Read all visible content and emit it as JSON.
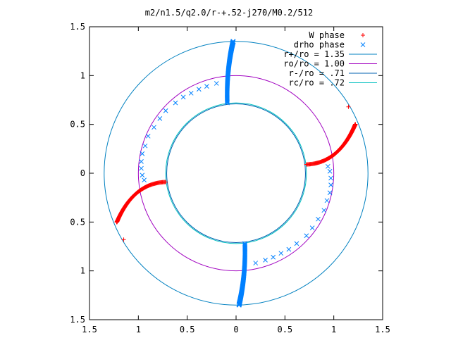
{
  "chart_data": {
    "type": "scatter",
    "title": "m2/n1.5/q2.0/r-+.52-j270/M0.2/512",
    "xlim": [
      -1.5,
      1.5
    ],
    "ylim": [
      -1.5,
      1.5
    ],
    "x_ticks": [
      {
        "value": -1.5,
        "label": "1.5"
      },
      {
        "value": -1.0,
        "label": "1"
      },
      {
        "value": -0.5,
        "label": "0.5"
      },
      {
        "value": 0.0,
        "label": "0"
      },
      {
        "value": 0.5,
        "label": "0.5"
      },
      {
        "value": 1.0,
        "label": "1"
      },
      {
        "value": 1.5,
        "label": "1.5"
      }
    ],
    "y_ticks": [
      {
        "value": 1.5,
        "label": "1.5"
      },
      {
        "value": 1.0,
        "label": "1"
      },
      {
        "value": 0.5,
        "label": "0.5"
      },
      {
        "value": 0.0,
        "label": "0"
      },
      {
        "value": -0.5,
        "label": "0.5"
      },
      {
        "value": -1.0,
        "label": "1"
      },
      {
        "value": -1.5,
        "label": "1.5"
      }
    ],
    "grid": false,
    "legend_position": "top-right",
    "series": [
      {
        "name": "W phase",
        "kind": "points",
        "marker": "plus",
        "color": "#ff0000",
        "arms": [
          {
            "inner": [
              0.72,
              0.09
            ],
            "bend": [
              1.05,
              0.1
            ],
            "outer": [
              1.22,
              0.5
            ],
            "tip": [
              1.15,
              0.68
            ]
          },
          {
            "inner": [
              -0.72,
              -0.09
            ],
            "bend": [
              -1.05,
              -0.1
            ],
            "outer": [
              -1.22,
              -0.5
            ],
            "tip": [
              -1.15,
              -0.68
            ]
          }
        ]
      },
      {
        "name": "drho phase",
        "kind": "points",
        "marker": "cross",
        "color": "#0080ff",
        "arms": [
          {
            "inner": [
              -0.09,
              0.72
            ],
            "bend": [
              -0.1,
              1.05
            ],
            "outer": [
              -0.03,
              1.35
            ],
            "scatter": [
              [
                -0.2,
                0.92
              ],
              [
                -0.3,
                0.89
              ],
              [
                -0.38,
                0.86
              ],
              [
                -0.46,
                0.82
              ],
              [
                -0.54,
                0.78
              ],
              [
                -0.62,
                0.72
              ],
              [
                -0.72,
                0.64
              ],
              [
                -0.78,
                0.56
              ],
              [
                -0.84,
                0.47
              ],
              [
                -0.9,
                0.38
              ],
              [
                -0.93,
                0.28
              ],
              [
                -0.96,
                0.2
              ],
              [
                -0.97,
                0.12
              ],
              [
                -0.97,
                0.05
              ],
              [
                -0.96,
                -0.02
              ],
              [
                -0.94,
                -0.07
              ]
            ]
          },
          {
            "inner": [
              0.09,
              -0.72
            ],
            "bend": [
              0.1,
              -1.05
            ],
            "outer": [
              0.03,
              -1.35
            ],
            "scatter": [
              [
                0.2,
                -0.92
              ],
              [
                0.3,
                -0.89
              ],
              [
                0.38,
                -0.86
              ],
              [
                0.46,
                -0.82
              ],
              [
                0.54,
                -0.78
              ],
              [
                0.62,
                -0.72
              ],
              [
                0.72,
                -0.64
              ],
              [
                0.78,
                -0.56
              ],
              [
                0.84,
                -0.47
              ],
              [
                0.9,
                -0.38
              ],
              [
                0.93,
                -0.28
              ],
              [
                0.96,
                -0.2
              ],
              [
                0.97,
                -0.12
              ],
              [
                0.97,
                -0.05
              ],
              [
                0.96,
                0.02
              ],
              [
                0.94,
                0.07
              ]
            ]
          }
        ]
      },
      {
        "name": "r+/ro = 1.35",
        "kind": "circle",
        "radius": 1.35,
        "color": "#0080c0"
      },
      {
        "name": "ro/ro = 1.00",
        "kind": "circle",
        "radius": 1.0,
        "color": "#a000c0"
      },
      {
        "name": "r-/ro = .71",
        "kind": "circle",
        "radius": 0.71,
        "color": "#0060b0"
      },
      {
        "name": "rc/ro = .72",
        "kind": "circle",
        "radius": 0.72,
        "color": "#00c0c0"
      }
    ]
  }
}
